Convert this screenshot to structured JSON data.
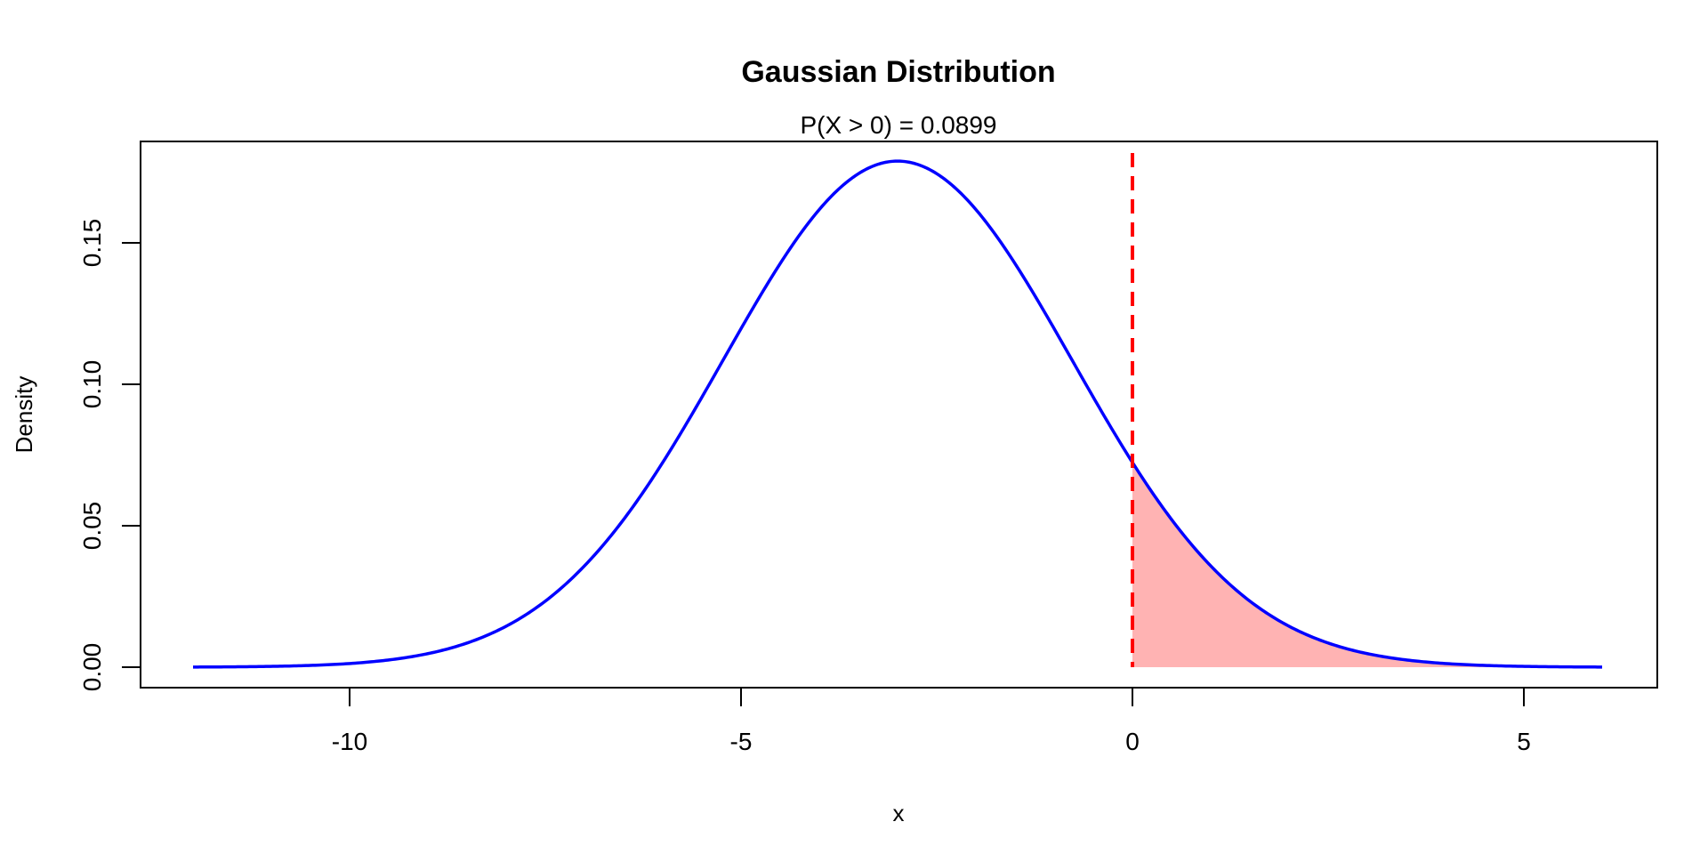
{
  "chart_data": {
    "type": "line",
    "title": "Gaussian Distribution",
    "subtitle": "P(X > 0) = 0.0899",
    "xlabel": "x",
    "ylabel": "Density",
    "xlim": [
      -12,
      6
    ],
    "ylim": [
      0,
      0.18
    ],
    "x_ticks": [
      -10,
      -5,
      0,
      5
    ],
    "x_tick_labels": [
      "-10",
      "-5",
      "0",
      "5"
    ],
    "y_ticks": [
      0,
      0.05,
      0.1,
      0.15
    ],
    "y_tick_labels": [
      "0.00",
      "0.05",
      "0.10",
      "0.15"
    ],
    "grid": false,
    "series": [
      {
        "distribution": "normal",
        "mean": -3,
        "sd": 2.23,
        "color": "#0000ff"
      }
    ],
    "shaded_region": {
      "from": 0,
      "to": 6,
      "color": "#ffb3b3",
      "probability": 0.0899
    },
    "reference_line": {
      "x": 0,
      "color": "#ff0000",
      "style": "dashed"
    }
  }
}
